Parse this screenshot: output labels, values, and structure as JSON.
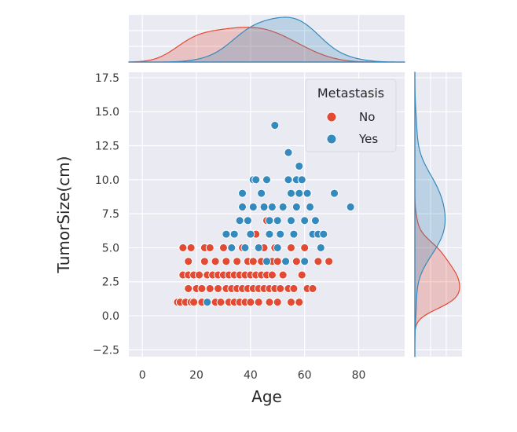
{
  "chart_data": {
    "type": "scatter",
    "title": "",
    "xlabel": "Age",
    "ylabel": "TumorSize(cm)",
    "xlim": [
      -5,
      97
    ],
    "ylim": [
      -3,
      17.9
    ],
    "xticks": [
      0,
      20,
      40,
      60,
      80
    ],
    "yticks": [
      -2.5,
      0.0,
      2.5,
      5.0,
      7.5,
      10.0,
      12.5,
      15.0,
      17.5
    ],
    "ytick_labels": [
      "−2.5",
      "0.0",
      "2.5",
      "5.0",
      "7.5",
      "10.0",
      "12.5",
      "15.0",
      "17.5"
    ],
    "grid": true,
    "legend": {
      "title": "Metastasis",
      "placement": "top-right"
    },
    "marginals": {
      "top": "kde of Age by Metastasis",
      "right": "kde of TumorSize(cm) by Metastasis"
    },
    "series": [
      {
        "name": "No",
        "color": "#e24a33",
        "points": [
          [
            13,
            1
          ],
          [
            14,
            1
          ],
          [
            15,
            3
          ],
          [
            15,
            5
          ],
          [
            16,
            1
          ],
          [
            17,
            2
          ],
          [
            17,
            4
          ],
          [
            17,
            3
          ],
          [
            18,
            5
          ],
          [
            18,
            1
          ],
          [
            19,
            1
          ],
          [
            19,
            3
          ],
          [
            20,
            2
          ],
          [
            21,
            3
          ],
          [
            22,
            1
          ],
          [
            22,
            2
          ],
          [
            23,
            4
          ],
          [
            23,
            5
          ],
          [
            24,
            1
          ],
          [
            24,
            3
          ],
          [
            25,
            2
          ],
          [
            25,
            5
          ],
          [
            26,
            3
          ],
          [
            27,
            1
          ],
          [
            27,
            4
          ],
          [
            28,
            2
          ],
          [
            28,
            3
          ],
          [
            29,
            1
          ],
          [
            30,
            3
          ],
          [
            30,
            5
          ],
          [
            31,
            2
          ],
          [
            31,
            4
          ],
          [
            32,
            3
          ],
          [
            32,
            1
          ],
          [
            33,
            2
          ],
          [
            33,
            5
          ],
          [
            34,
            3
          ],
          [
            34,
            1
          ],
          [
            35,
            4
          ],
          [
            35,
            2
          ],
          [
            36,
            3
          ],
          [
            36,
            1
          ],
          [
            37,
            2
          ],
          [
            37,
            5
          ],
          [
            38,
            3
          ],
          [
            38,
            1
          ],
          [
            39,
            4
          ],
          [
            39,
            2
          ],
          [
            40,
            3
          ],
          [
            40,
            1
          ],
          [
            41,
            2
          ],
          [
            41,
            4
          ],
          [
            42,
            3
          ],
          [
            42,
            6
          ],
          [
            43,
            2
          ],
          [
            43,
            1
          ],
          [
            44,
            3
          ],
          [
            44,
            4
          ],
          [
            45,
            2
          ],
          [
            45,
            5
          ],
          [
            46,
            3
          ],
          [
            46,
            7
          ],
          [
            47,
            2
          ],
          [
            47,
            1
          ],
          [
            48,
            4
          ],
          [
            48,
            3
          ],
          [
            49,
            2
          ],
          [
            49,
            5
          ],
          [
            50,
            1
          ],
          [
            50,
            4
          ],
          [
            51,
            2
          ],
          [
            51,
            6
          ],
          [
            52,
            3
          ],
          [
            53,
            4
          ],
          [
            54,
            2
          ],
          [
            55,
            1
          ],
          [
            55,
            5
          ],
          [
            56,
            2
          ],
          [
            57,
            4
          ],
          [
            58,
            1
          ],
          [
            59,
            3
          ],
          [
            60,
            5
          ],
          [
            61,
            2
          ],
          [
            63,
            2
          ],
          [
            65,
            4
          ],
          [
            69,
            4
          ]
        ]
      },
      {
        "name": "Yes",
        "color": "#348abd",
        "points": [
          [
            24,
            1
          ],
          [
            31,
            6
          ],
          [
            33,
            5
          ],
          [
            34,
            6
          ],
          [
            36,
            7
          ],
          [
            37,
            8
          ],
          [
            37,
            9
          ],
          [
            38,
            5
          ],
          [
            39,
            7
          ],
          [
            40,
            6
          ],
          [
            41,
            8
          ],
          [
            41,
            10
          ],
          [
            42,
            10
          ],
          [
            43,
            5
          ],
          [
            44,
            9
          ],
          [
            45,
            8
          ],
          [
            46,
            10
          ],
          [
            46,
            4
          ],
          [
            47,
            6
          ],
          [
            47,
            7
          ],
          [
            48,
            8
          ],
          [
            49,
            14
          ],
          [
            50,
            7
          ],
          [
            50,
            5
          ],
          [
            51,
            6
          ],
          [
            52,
            8
          ],
          [
            53,
            4
          ],
          [
            54,
            12
          ],
          [
            54,
            10
          ],
          [
            55,
            9
          ],
          [
            55,
            7
          ],
          [
            56,
            6
          ],
          [
            57,
            10
          ],
          [
            57,
            8
          ],
          [
            58,
            9
          ],
          [
            58,
            11
          ],
          [
            59,
            10
          ],
          [
            60,
            7
          ],
          [
            60,
            4
          ],
          [
            61,
            9
          ],
          [
            62,
            8
          ],
          [
            63,
            6
          ],
          [
            64,
            7
          ],
          [
            65,
            6
          ],
          [
            66,
            5
          ],
          [
            67,
            6
          ],
          [
            71,
            9
          ],
          [
            77,
            8
          ]
        ]
      }
    ]
  }
}
